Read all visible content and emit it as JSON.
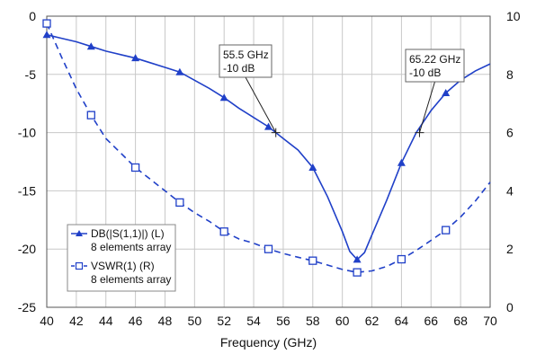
{
  "chart_data": {
    "type": "line",
    "xlabel": "Frequency (GHz)",
    "x_ticks": [
      "40",
      "42",
      "44",
      "46",
      "48",
      "50",
      "52",
      "54",
      "56",
      "58",
      "60",
      "62",
      "64",
      "66",
      "68",
      "70"
    ],
    "xlim": [
      40,
      70
    ],
    "ylim_left": [
      -25,
      0
    ],
    "ylim_right": [
      0,
      10
    ],
    "y_ticks_left": [
      "0",
      "-5",
      "-10",
      "-15",
      "-20",
      "-25"
    ],
    "y_ticks_right": [
      "10",
      "8",
      "6",
      "4",
      "2",
      "0"
    ],
    "grid": true,
    "legend_position": "bottom-left",
    "series": [
      {
        "name": "DB(|S(1,1)|) (L)",
        "subtitle": "8 elements array",
        "axis": "left",
        "color": "#2040c8",
        "style": "solid",
        "marker": "triangle",
        "x": [
          40,
          41,
          42,
          43,
          44,
          45,
          46,
          47,
          48,
          49,
          50,
          51,
          52,
          53,
          54,
          55,
          56,
          57,
          58,
          59,
          60,
          60.5,
          61,
          61.5,
          62,
          63,
          64,
          65,
          66,
          67,
          68,
          69,
          70
        ],
        "y": [
          -1.6,
          -1.9,
          -2.2,
          -2.6,
          -3.0,
          -3.3,
          -3.6,
          -4.0,
          -4.4,
          -4.8,
          -5.5,
          -6.2,
          -7.0,
          -7.9,
          -8.7,
          -9.5,
          -10.5,
          -11.5,
          -13.0,
          -15.5,
          -18.5,
          -20.2,
          -20.9,
          -20.3,
          -18.8,
          -15.8,
          -12.6,
          -10.0,
          -8.1,
          -6.6,
          -5.5,
          -4.7,
          -4.1
        ],
        "marker_x": [
          40,
          43,
          46,
          49,
          52,
          55,
          58,
          61,
          64,
          67
        ]
      },
      {
        "name": "VSWR(1) (R)",
        "subtitle": "8 elements array",
        "axis": "right",
        "color": "#2040c8",
        "style": "dashed",
        "marker": "square",
        "x": [
          40,
          41,
          42,
          43,
          44,
          45,
          46,
          47,
          48,
          49,
          50,
          51,
          52,
          53,
          54,
          55,
          56,
          57,
          58,
          59,
          60,
          61,
          62,
          63,
          64,
          65,
          66,
          67,
          68,
          69,
          70
        ],
        "y": [
          9.75,
          8.6,
          7.5,
          6.6,
          5.8,
          5.3,
          4.8,
          4.4,
          4.0,
          3.6,
          3.25,
          2.95,
          2.6,
          2.35,
          2.2,
          2.0,
          1.85,
          1.72,
          1.6,
          1.45,
          1.3,
          1.2,
          1.25,
          1.4,
          1.65,
          1.95,
          2.3,
          2.65,
          3.1,
          3.65,
          4.3
        ],
        "marker_x": [
          40,
          43,
          46,
          49,
          52,
          55,
          58,
          61,
          64,
          67
        ]
      }
    ],
    "annotations": [
      {
        "line1": "55.5 GHz",
        "line2": "-10 dB",
        "x": 55.5,
        "y": -10
      },
      {
        "line1": "65.22 GHz",
        "line2": "-10 dB",
        "x": 65.22,
        "y": -10
      }
    ]
  }
}
